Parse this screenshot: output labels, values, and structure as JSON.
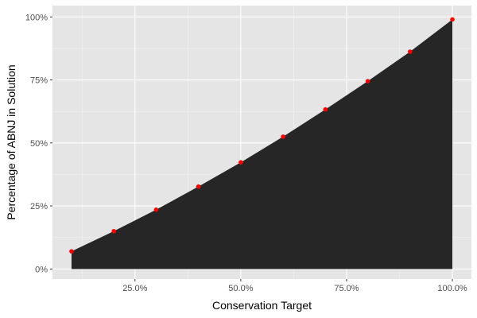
{
  "chart_data": {
    "type": "area",
    "x": [
      0.1,
      0.2,
      0.3,
      0.4,
      0.5,
      0.6,
      0.7,
      0.8,
      0.9,
      1.0
    ],
    "y": [
      0.07,
      0.15,
      0.235,
      0.327,
      0.423,
      0.525,
      0.633,
      0.745,
      0.862,
      0.99
    ],
    "xlabel": "Conservation Target",
    "ylabel": "Percentage of ABNJ in Solution",
    "xlim": [
      0.055,
      1.045
    ],
    "ylim": [
      -0.04,
      1.045
    ],
    "x_ticks": [
      0.25,
      0.5,
      0.75,
      1.0
    ],
    "x_tick_labels": [
      "25.0%",
      "50.0%",
      "75.0%",
      "100.0%"
    ],
    "y_ticks": [
      0,
      0.25,
      0.5,
      0.75,
      1.0
    ],
    "y_tick_labels": [
      "0%",
      "25%",
      "50%",
      "75%",
      "100%"
    ],
    "grid": true,
    "colors": {
      "panel": "#e5e5e5",
      "grid_major": "#ffffff",
      "area_fill": "#262626",
      "points": "#ff0000"
    }
  }
}
